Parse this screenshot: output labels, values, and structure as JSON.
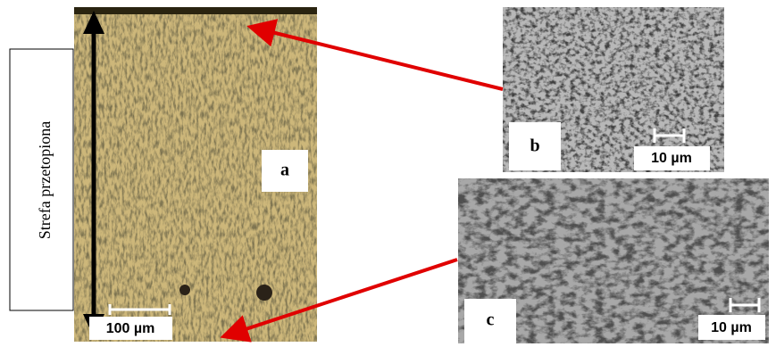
{
  "labels": {
    "zone": "Strefa przetopiona",
    "a": "a",
    "b": "b",
    "c": "c",
    "scale_a": "100 µm",
    "scale_b": "10 µm",
    "scale_c": "10 µm"
  }
}
